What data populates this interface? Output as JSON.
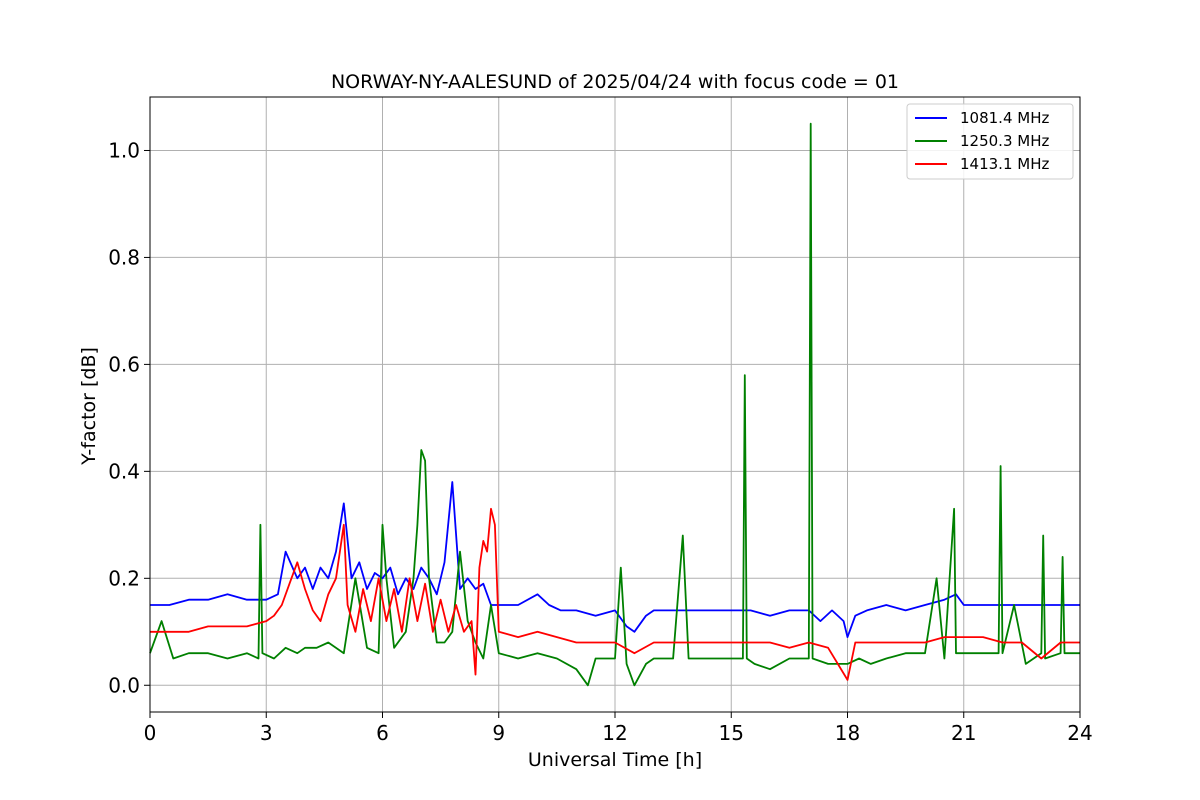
{
  "chart_data": {
    "type": "line",
    "title": "NORWAY-NY-AALESUND of 2025/04/24 with focus code = 01",
    "xlabel": "Universal Time [h]",
    "ylabel": "Y-factor [dB]",
    "xlim": [
      0,
      24
    ],
    "ylim": [
      -0.05,
      1.1
    ],
    "xticks": [
      0,
      3,
      6,
      9,
      12,
      15,
      18,
      21,
      24
    ],
    "xtick_labels": [
      "0",
      "3",
      "6",
      "9",
      "12",
      "15",
      "18",
      "21",
      "24"
    ],
    "yticks": [
      0.0,
      0.2,
      0.4,
      0.6,
      0.8,
      1.0
    ],
    "ytick_labels": [
      "0.0",
      "0.2",
      "0.4",
      "0.6",
      "0.8",
      "1.0"
    ],
    "grid": true,
    "legend_position": "top-right",
    "series": [
      {
        "name": "1081.4 MHz",
        "color": "#0000ff",
        "x": [
          0.0,
          0.5,
          1.0,
          1.5,
          2.0,
          2.5,
          3.0,
          3.3,
          3.5,
          3.8,
          4.0,
          4.2,
          4.4,
          4.6,
          4.8,
          5.0,
          5.2,
          5.4,
          5.6,
          5.8,
          6.0,
          6.2,
          6.4,
          6.6,
          6.8,
          7.0,
          7.2,
          7.4,
          7.6,
          7.8,
          8.0,
          8.2,
          8.4,
          8.6,
          8.8,
          9.0,
          9.5,
          10.0,
          10.3,
          10.6,
          11.0,
          11.5,
          12.0,
          12.3,
          12.5,
          12.8,
          13.0,
          13.5,
          14.0,
          14.5,
          15.0,
          15.5,
          16.0,
          16.5,
          17.0,
          17.3,
          17.6,
          17.9,
          18.0,
          18.2,
          18.5,
          19.0,
          19.5,
          20.0,
          20.5,
          20.8,
          21.0,
          21.5,
          22.0,
          22.5,
          23.0,
          23.5,
          24.0
        ],
        "y": [
          0.15,
          0.15,
          0.16,
          0.16,
          0.17,
          0.16,
          0.16,
          0.17,
          0.25,
          0.2,
          0.22,
          0.18,
          0.22,
          0.2,
          0.25,
          0.34,
          0.2,
          0.23,
          0.18,
          0.21,
          0.2,
          0.22,
          0.17,
          0.2,
          0.18,
          0.22,
          0.2,
          0.17,
          0.23,
          0.38,
          0.18,
          0.2,
          0.18,
          0.19,
          0.15,
          0.15,
          0.15,
          0.17,
          0.15,
          0.14,
          0.14,
          0.13,
          0.14,
          0.11,
          0.1,
          0.13,
          0.14,
          0.14,
          0.14,
          0.14,
          0.14,
          0.14,
          0.13,
          0.14,
          0.14,
          0.12,
          0.14,
          0.12,
          0.09,
          0.13,
          0.14,
          0.15,
          0.14,
          0.15,
          0.16,
          0.17,
          0.15,
          0.15,
          0.15,
          0.15,
          0.15,
          0.15,
          0.15
        ]
      },
      {
        "name": "1250.3 MHz",
        "color": "#008000",
        "x": [
          0.0,
          0.3,
          0.6,
          1.0,
          1.5,
          2.0,
          2.5,
          2.8,
          2.85,
          2.9,
          3.2,
          3.5,
          3.8,
          4.0,
          4.3,
          4.6,
          5.0,
          5.3,
          5.6,
          5.9,
          6.0,
          6.1,
          6.3,
          6.6,
          6.8,
          6.9,
          7.0,
          7.1,
          7.2,
          7.4,
          7.6,
          7.8,
          8.0,
          8.2,
          8.4,
          8.6,
          8.8,
          9.0,
          9.5,
          10.0,
          10.5,
          11.0,
          11.3,
          11.5,
          12.0,
          12.15,
          12.3,
          12.5,
          12.8,
          13.0,
          13.5,
          13.75,
          13.9,
          14.5,
          15.0,
          15.3,
          15.35,
          15.4,
          15.6,
          16.0,
          16.5,
          17.0,
          17.05,
          17.1,
          17.5,
          18.0,
          18.3,
          18.6,
          19.0,
          19.5,
          20.0,
          20.3,
          20.5,
          20.75,
          20.8,
          21.0,
          21.5,
          21.9,
          21.95,
          22.0,
          22.3,
          22.6,
          23.0,
          23.05,
          23.1,
          23.5,
          23.55,
          23.6,
          24.0
        ],
        "y": [
          0.06,
          0.12,
          0.05,
          0.06,
          0.06,
          0.05,
          0.06,
          0.05,
          0.3,
          0.06,
          0.05,
          0.07,
          0.06,
          0.07,
          0.07,
          0.08,
          0.06,
          0.2,
          0.07,
          0.06,
          0.3,
          0.2,
          0.07,
          0.1,
          0.2,
          0.3,
          0.44,
          0.42,
          0.2,
          0.08,
          0.08,
          0.1,
          0.25,
          0.12,
          0.08,
          0.05,
          0.15,
          0.06,
          0.05,
          0.06,
          0.05,
          0.03,
          0.0,
          0.05,
          0.05,
          0.22,
          0.04,
          0.0,
          0.04,
          0.05,
          0.05,
          0.28,
          0.05,
          0.05,
          0.05,
          0.05,
          0.58,
          0.05,
          0.04,
          0.03,
          0.05,
          0.05,
          1.05,
          0.05,
          0.04,
          0.04,
          0.05,
          0.04,
          0.05,
          0.06,
          0.06,
          0.2,
          0.05,
          0.33,
          0.06,
          0.06,
          0.06,
          0.06,
          0.41,
          0.06,
          0.15,
          0.04,
          0.06,
          0.28,
          0.05,
          0.06,
          0.24,
          0.06,
          0.06
        ]
      },
      {
        "name": "1413.1 MHz",
        "color": "#ff0000",
        "x": [
          0.0,
          0.5,
          1.0,
          1.5,
          2.0,
          2.5,
          3.0,
          3.2,
          3.4,
          3.6,
          3.8,
          4.0,
          4.2,
          4.4,
          4.6,
          4.8,
          5.0,
          5.1,
          5.3,
          5.5,
          5.7,
          5.9,
          6.1,
          6.3,
          6.5,
          6.7,
          6.9,
          7.1,
          7.3,
          7.5,
          7.7,
          7.9,
          8.1,
          8.3,
          8.4,
          8.5,
          8.6,
          8.7,
          8.8,
          8.9,
          9.0,
          9.5,
          10.0,
          10.5,
          11.0,
          11.5,
          12.0,
          12.5,
          13.0,
          13.5,
          14.0,
          14.5,
          15.0,
          15.5,
          16.0,
          16.5,
          17.0,
          17.5,
          18.0,
          18.2,
          18.5,
          19.0,
          19.5,
          20.0,
          20.5,
          21.0,
          21.5,
          22.0,
          22.5,
          23.0,
          23.5,
          24.0
        ],
        "y": [
          0.1,
          0.1,
          0.1,
          0.11,
          0.11,
          0.11,
          0.12,
          0.13,
          0.15,
          0.19,
          0.23,
          0.18,
          0.14,
          0.12,
          0.17,
          0.2,
          0.3,
          0.15,
          0.1,
          0.18,
          0.12,
          0.2,
          0.12,
          0.18,
          0.1,
          0.2,
          0.12,
          0.19,
          0.1,
          0.16,
          0.1,
          0.15,
          0.1,
          0.12,
          0.02,
          0.22,
          0.27,
          0.25,
          0.33,
          0.3,
          0.1,
          0.09,
          0.1,
          0.09,
          0.08,
          0.08,
          0.08,
          0.06,
          0.08,
          0.08,
          0.08,
          0.08,
          0.08,
          0.08,
          0.08,
          0.07,
          0.08,
          0.07,
          0.01,
          0.08,
          0.08,
          0.08,
          0.08,
          0.08,
          0.09,
          0.09,
          0.09,
          0.08,
          0.08,
          0.05,
          0.08,
          0.08
        ]
      }
    ]
  }
}
